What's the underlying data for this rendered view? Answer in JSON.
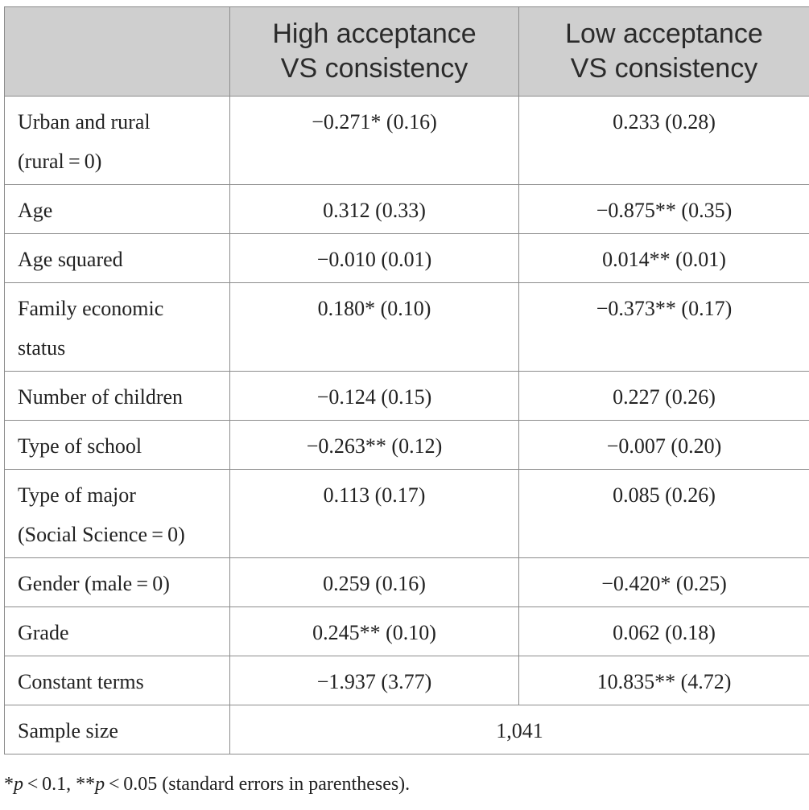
{
  "table": {
    "header": {
      "blank": "",
      "col1_line1": "High acceptance",
      "col1_line2": "VS consistency",
      "col2_line1": "Low acceptance",
      "col2_line2": "VS consistency"
    },
    "rows": [
      {
        "label_line1": "Urban and rural",
        "label_line2": "(rural = 0)",
        "high": "−0.271* (0.16)",
        "low": "0.233 (0.28)"
      },
      {
        "label": "Age",
        "high": "0.312 (0.33)",
        "low": "−0.875** (0.35)"
      },
      {
        "label": "Age squared",
        "high": "−0.010 (0.01)",
        "low": "0.014** (0.01)"
      },
      {
        "label_line1": "Family economic",
        "label_line2": "status",
        "high": "0.180* (0.10)",
        "low": "−0.373** (0.17)"
      },
      {
        "label": "Number of children",
        "high": "−0.124 (0.15)",
        "low": "0.227 (0.26)"
      },
      {
        "label": "Type of school",
        "high": "−0.263** (0.12)",
        "low": "−0.007 (0.20)"
      },
      {
        "label_line1": "Type of major",
        "label_line2": "(Social Science = 0)",
        "high": "0.113 (0.17)",
        "low": "0.085 (0.26)"
      },
      {
        "label": "Gender (male = 0)",
        "high": "0.259 (0.16)",
        "low": "−0.420* (0.25)"
      },
      {
        "label": "Grade",
        "high": "0.245** (0.10)",
        "low": "0.062 (0.18)"
      },
      {
        "label": "Constant terms",
        "high": "−1.937 (3.77)",
        "low": "10.835** (4.72)"
      }
    ],
    "sample": {
      "label": "Sample size",
      "value": "1,041"
    }
  },
  "footnote": {
    "star1": "*",
    "p1": "p",
    "t1": " < 0.1, **",
    "p2": "p",
    "t2": " < 0.05 (standard errors in parentheses)."
  }
}
